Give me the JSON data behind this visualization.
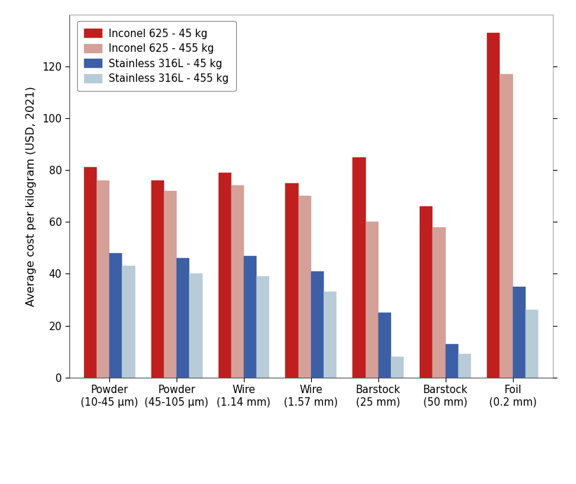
{
  "categories": [
    "Powder\n(10-45 μm)",
    "Powder\n(45-105 μm)",
    "Wire\n(1.14 mm)",
    "Wire\n(1.57 mm)",
    "Barstock\n(25 mm)",
    "Barstock\n(50 mm)",
    "Foil\n(0.2 mm)"
  ],
  "series": [
    {
      "label": "Inconel 625 - 45 kg",
      "color": "#bf1f1e",
      "values": [
        81,
        76,
        79,
        75,
        85,
        66,
        133
      ]
    },
    {
      "label": "Inconel 625 - 455 kg",
      "color": "#d4a098",
      "values": [
        76,
        72,
        74,
        70,
        60,
        58,
        117
      ]
    },
    {
      "label": "Stainless 316L - 45 kg",
      "color": "#3d5fa5",
      "values": [
        48,
        46,
        47,
        41,
        25,
        13,
        35
      ]
    },
    {
      "label": "Stainless 316L - 455 kg",
      "color": "#b8ccd8",
      "values": [
        43,
        40,
        39,
        33,
        8,
        9,
        26
      ]
    }
  ],
  "ylabel": "Average cost per kilogram (USD, 2021)",
  "ylim": [
    0,
    140
  ],
  "yticks": [
    0,
    20,
    40,
    60,
    80,
    100,
    120
  ],
  "bar_width": 0.19,
  "background_color": "#ffffff",
  "legend_fontsize": 10.5,
  "ylabel_fontsize": 11.5,
  "tick_fontsize": 10.5
}
